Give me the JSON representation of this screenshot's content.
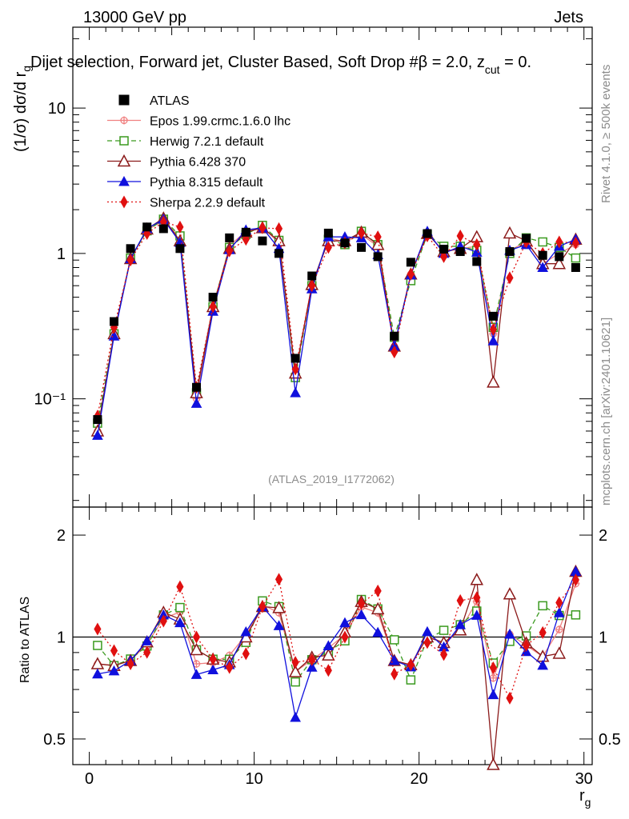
{
  "header": {
    "energy_label": "13000 GeV pp",
    "process_label": "Jets",
    "selection_title": "Dijet selection, Forward jet, Cluster Based, Soft Drop #β = 2.0, z",
    "cut_subscript": "cut",
    "title_tail": " = 0.",
    "rivet_label": "Rivet 4.1.0, ≥ 500k events",
    "mcplots_label": "mcplots.cern.ch [arXiv:2401.10621]",
    "analysis_label": "(ATLAS_2019_I1772062)"
  },
  "chart_data": {
    "type": "scatter",
    "xlabel": "r",
    "xlabel_sub": "g",
    "ylabel_main": "(1/σ) dσ/d r",
    "ylabel_main_sub": "g",
    "ylabel_ratio": "Ratio to ATLAS",
    "xlim": [
      -1,
      30.5
    ],
    "ylim_main": [
      0.018,
      36
    ],
    "ylim_ratio": [
      0.42,
      2.42
    ],
    "main_yscale": "log",
    "x_ticks": [
      "0",
      "10",
      "20",
      "30"
    ],
    "main_y_tick_labels": [
      "10⁻¹",
      "1",
      "10"
    ],
    "ratio_y_tick_labels": [
      "0.5",
      "1",
      "2"
    ],
    "x": [
      0.5,
      1.5,
      2.5,
      3.5,
      4.5,
      5.5,
      6.5,
      7.5,
      8.5,
      9.5,
      10.5,
      11.5,
      12.5,
      13.5,
      14.5,
      15.5,
      16.5,
      17.5,
      18.5,
      19.5,
      20.5,
      21.5,
      22.5,
      23.5,
      24.5,
      25.5,
      26.5,
      27.5,
      28.5,
      29.5
    ],
    "data": {
      "name": "ATLAS",
      "values": [
        0.072,
        0.34,
        1.08,
        1.52,
        1.48,
        1.08,
        0.12,
        0.5,
        1.28,
        1.4,
        1.22,
        1.0,
        0.19,
        0.7,
        1.38,
        1.18,
        1.1,
        0.95,
        0.27,
        0.87,
        1.37,
        1.07,
        1.03,
        0.88,
        0.37,
        1.03,
        1.27,
        0.97,
        0.95,
        0.8
      ]
    },
    "series": [
      {
        "name": "Epos 1.99.crmc.1.6.0 lhc",
        "color": "#f08080",
        "style": "solid",
        "marker": "cross-circle",
        "values": [
          0.06,
          0.28,
          0.92,
          1.45,
          1.68,
          1.28,
          0.1,
          0.42,
          1.13,
          1.42,
          1.52,
          1.18,
          0.15,
          0.6,
          1.28,
          1.2,
          1.35,
          1.12,
          0.23,
          0.72,
          1.4,
          1.02,
          1.08,
          1.12,
          0.28,
          1.05,
          1.2,
          0.85,
          1.0,
          1.15
        ]
      },
      {
        "name": "Herwig 7.2.1 default",
        "color": "#3a9a1f",
        "style": "dashed",
        "marker": "open-square",
        "values": [
          0.068,
          0.28,
          0.93,
          1.43,
          1.72,
          1.32,
          0.11,
          0.43,
          1.1,
          1.35,
          1.56,
          1.23,
          0.14,
          0.6,
          1.25,
          1.15,
          1.42,
          1.15,
          0.265,
          0.65,
          1.35,
          1.12,
          1.12,
          1.05,
          0.31,
          1.0,
          1.28,
          1.2,
          1.1,
          0.93
        ]
      },
      {
        "name": "Pythia 6.428 370",
        "color": "#8b1a1a",
        "style": "solid",
        "marker": "open-triangle",
        "values": [
          0.06,
          0.28,
          0.92,
          1.47,
          1.75,
          1.22,
          0.11,
          0.43,
          1.08,
          1.4,
          1.5,
          1.22,
          0.15,
          0.61,
          1.22,
          1.22,
          1.4,
          1.15,
          0.23,
          0.72,
          1.37,
          1.03,
          1.08,
          1.3,
          0.13,
          1.38,
          1.22,
          0.85,
          0.85,
          1.25
        ]
      },
      {
        "name": "Pythia 8.315 default",
        "color": "#1010dd",
        "style": "solid",
        "marker": "filled-triangle",
        "values": [
          0.056,
          0.27,
          0.92,
          1.48,
          1.72,
          1.19,
          0.093,
          0.4,
          1.06,
          1.45,
          1.5,
          1.08,
          0.11,
          0.57,
          1.3,
          1.3,
          1.28,
          0.98,
          0.23,
          0.71,
          1.42,
          1.0,
          1.12,
          1.02,
          0.25,
          1.05,
          1.15,
          0.8,
          1.12,
          1.25
        ]
      },
      {
        "name": "Sherpa 2.2.9 default",
        "color": "#e01010",
        "style": "dotted",
        "marker": "filled-diamond",
        "values": [
          0.076,
          0.31,
          0.9,
          1.37,
          1.65,
          1.52,
          0.12,
          0.43,
          1.04,
          1.25,
          1.5,
          1.48,
          0.16,
          0.6,
          1.1,
          1.18,
          1.38,
          1.3,
          0.21,
          0.72,
          1.32,
          0.95,
          1.32,
          1.15,
          0.3,
          0.68,
          1.2,
          1.0,
          1.2,
          1.18
        ]
      }
    ],
    "legend_position": "top-left"
  }
}
